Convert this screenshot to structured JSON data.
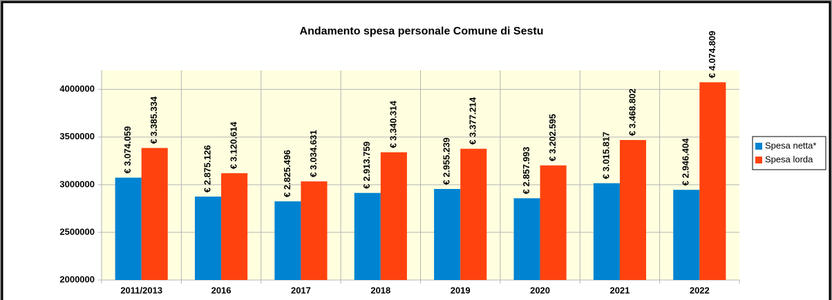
{
  "chart_data": {
    "type": "bar",
    "title": "Andamento spesa personale Comune di Sestu",
    "categories": [
      "2011/2013",
      "2016",
      "2017",
      "2018",
      "2019",
      "2020",
      "2021",
      "2022"
    ],
    "series": [
      {
        "name": "Spesa netta*",
        "color": "#0084d1",
        "values": [
          3074059,
          2875126,
          2825496,
          2913759,
          2955239,
          2857993,
          3015817,
          2946404
        ],
        "value_labels": [
          "€ 3.074.059",
          "€ 2.875.126",
          "€ 2.825.496",
          "€ 2.913.759",
          "€ 2.955.239",
          "€ 2.857.993",
          "€ 3.015.817",
          "€ 2.946.404"
        ]
      },
      {
        "name": "Spesa lorda",
        "color": "#ff420e",
        "values": [
          3385334,
          3120614,
          3034631,
          3340314,
          3377214,
          3202595,
          3468802,
          4074809
        ],
        "value_labels": [
          "€ 3.385.334",
          "€ 3.120.614",
          "€ 3.034.631",
          "€ 3.340.314",
          "€ 3.377.214",
          "€ 3.202.595",
          "€ 3.468.802",
          "€ 4.074.809"
        ]
      }
    ],
    "ylim": [
      2000000,
      4200000
    ],
    "yticks": [
      2000000,
      2500000,
      3000000,
      3500000,
      4000000
    ],
    "grid": true,
    "legend": "right"
  }
}
